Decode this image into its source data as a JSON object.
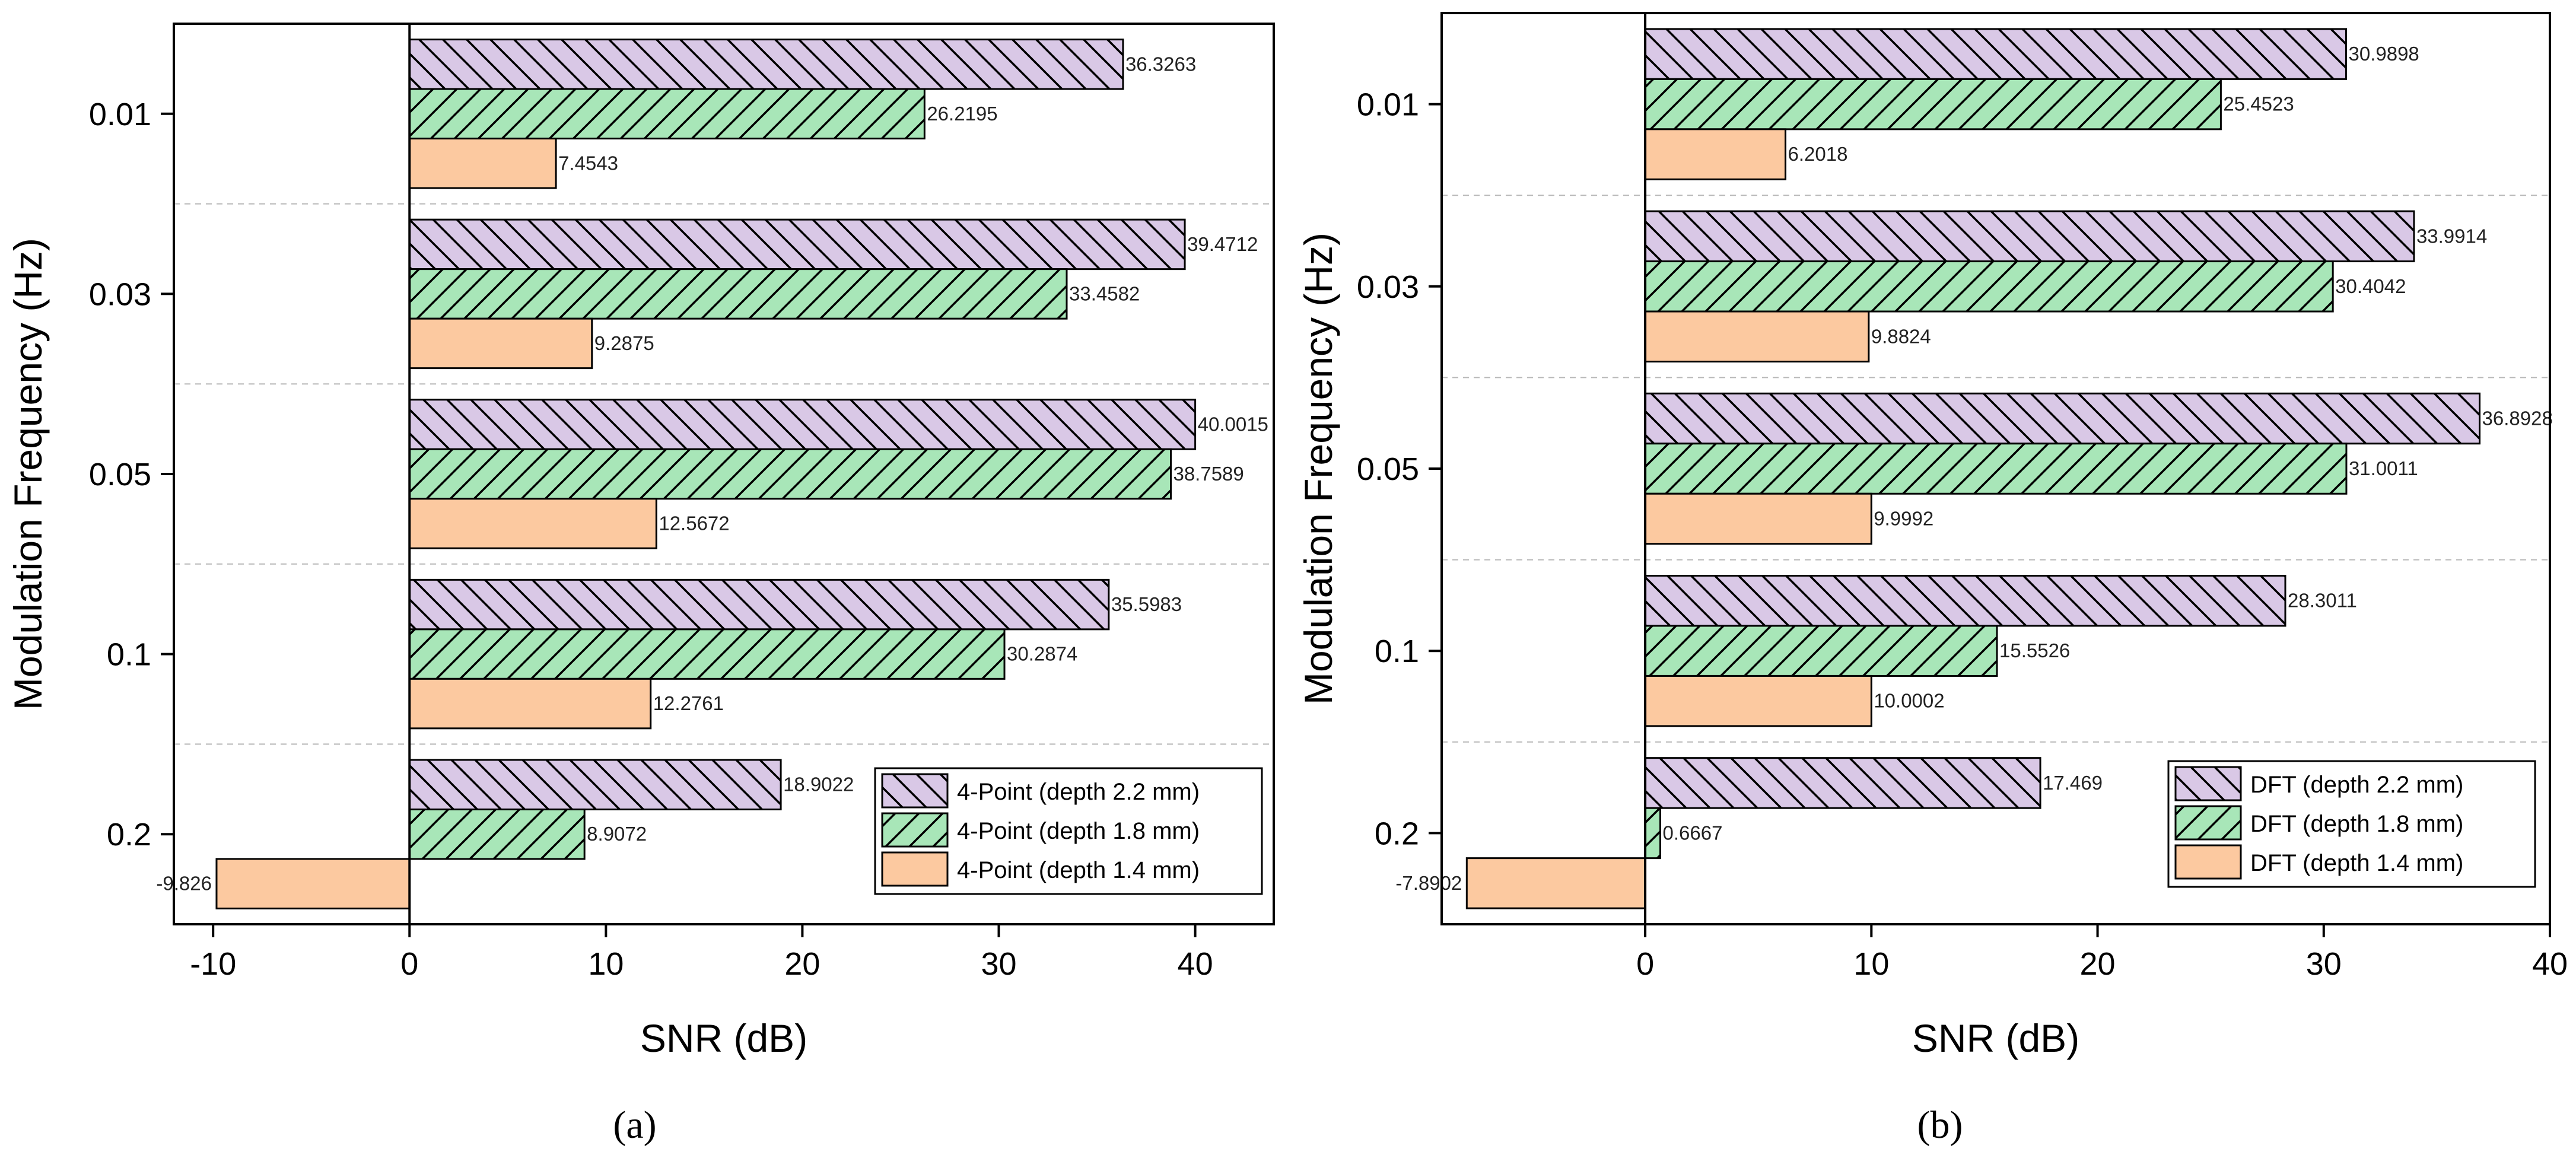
{
  "figure": {
    "panel_labels": [
      "(a)",
      "(b)"
    ]
  },
  "chart_data": [
    {
      "type": "bar",
      "orientation": "horizontal",
      "panel": "(a)",
      "xlabel": "SNR (dB)",
      "ylabel": "Modulation Frequency (Hz)",
      "categories": [
        "0.01",
        "0.03",
        "0.05",
        "0.1",
        "0.2"
      ],
      "xlim": [
        -12,
        44
      ],
      "xticks": [
        -10,
        0,
        10,
        20,
        30,
        40
      ],
      "grid": "horizontal dashed between categories",
      "legend_position": "bottom-right",
      "series": [
        {
          "name": "4-Point (depth 2.2 mm)",
          "fill": "#d9c8e6",
          "hatch": "backslash",
          "values": [
            36.3263,
            39.4712,
            40.0015,
            35.5983,
            18.9022
          ],
          "labels": [
            "36.3263",
            "39.4712",
            "40.0015",
            "35.5983",
            "18.9022"
          ]
        },
        {
          "name": "4-Point (depth 1.8 mm)",
          "fill": "#a8e6b8",
          "hatch": "slash",
          "values": [
            26.2195,
            33.4582,
            38.7589,
            30.2874,
            8.9072
          ],
          "labels": [
            "26.2195",
            "33.4582",
            "38.7589",
            "30.2874",
            "8.9072"
          ]
        },
        {
          "name": "4-Point (depth 1.4 mm)",
          "fill": "#fcc9a0",
          "hatch": "none",
          "values": [
            7.4543,
            9.2875,
            12.5672,
            12.2761,
            -9.826
          ],
          "labels": [
            "7.4543",
            "9.2875",
            "12.5672",
            "12.2761",
            "-9.826"
          ]
        }
      ]
    },
    {
      "type": "bar",
      "orientation": "horizontal",
      "panel": "(b)",
      "xlabel": "SNR (dB)",
      "ylabel": "Modulation Frequency (Hz)",
      "categories": [
        "0.01",
        "0.03",
        "0.05",
        "0.1",
        "0.2"
      ],
      "xlim": [
        -9,
        40
      ],
      "xticks": [
        0,
        10,
        20,
        30,
        40
      ],
      "grid": "horizontal dashed between categories",
      "legend_position": "bottom-right",
      "series": [
        {
          "name": "DFT (depth 2.2 mm)",
          "fill": "#d9c8e6",
          "hatch": "backslash",
          "values": [
            30.9898,
            33.9914,
            36.8928,
            28.3011,
            17.469
          ],
          "labels": [
            "30.9898",
            "33.9914",
            "36.8928",
            "28.3011",
            "17.469"
          ]
        },
        {
          "name": "DFT (depth 1.8 mm)",
          "fill": "#a8e6b8",
          "hatch": "slash",
          "values": [
            25.4523,
            30.4042,
            31.0011,
            15.5526,
            0.6667
          ],
          "labels": [
            "25.4523",
            "30.4042",
            "31.0011",
            "15.5526",
            "0.6667"
          ]
        },
        {
          "name": "DFT (depth 1.4 mm)",
          "fill": "#fcc9a0",
          "hatch": "none",
          "values": [
            6.2018,
            9.8824,
            9.9992,
            10.0002,
            -7.8902
          ],
          "labels": [
            "6.2018",
            "9.8824",
            "9.9992",
            "10.0002",
            "-7.8902"
          ]
        }
      ]
    }
  ]
}
